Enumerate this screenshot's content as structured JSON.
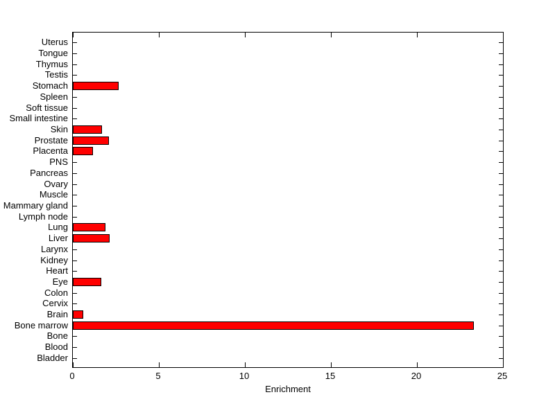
{
  "chart_data": {
    "type": "bar",
    "orientation": "horizontal",
    "title": "",
    "xlabel": "Enrichment",
    "ylabel": "",
    "categories_top_to_bottom": [
      "Uterus",
      "Tongue",
      "Thymus",
      "Testis",
      "Stomach",
      "Spleen",
      "Soft tissue",
      "Small intestine",
      "Skin",
      "Prostate",
      "Placenta",
      "PNS",
      "Pancreas",
      "Ovary",
      "Muscle",
      "Mammary gland",
      "Lymph node",
      "Lung",
      "Liver",
      "Larynx",
      "Kidney",
      "Heart",
      "Eye",
      "Colon",
      "Cervix",
      "Brain",
      "Bone marrow",
      "Bone",
      "Blood",
      "Bladder"
    ],
    "values": [
      0,
      0,
      0,
      0,
      2.65,
      0,
      0,
      0,
      1.7,
      2.1,
      1.15,
      0,
      0,
      0,
      0,
      0,
      0,
      1.9,
      2.15,
      0,
      0,
      0,
      1.65,
      0,
      0,
      0.6,
      23.3,
      0,
      0,
      0
    ],
    "xlim": [
      0,
      25
    ],
    "xticks": [
      0,
      5,
      10,
      15,
      20,
      25
    ],
    "xtick_labels": [
      "0",
      "5",
      "10",
      "15",
      "20",
      "25"
    ],
    "grid": false,
    "bar_color": "#FF0000",
    "bar_edge_color": "#000000",
    "axis_color": "#000000",
    "background_color": "#FFFFFF"
  }
}
